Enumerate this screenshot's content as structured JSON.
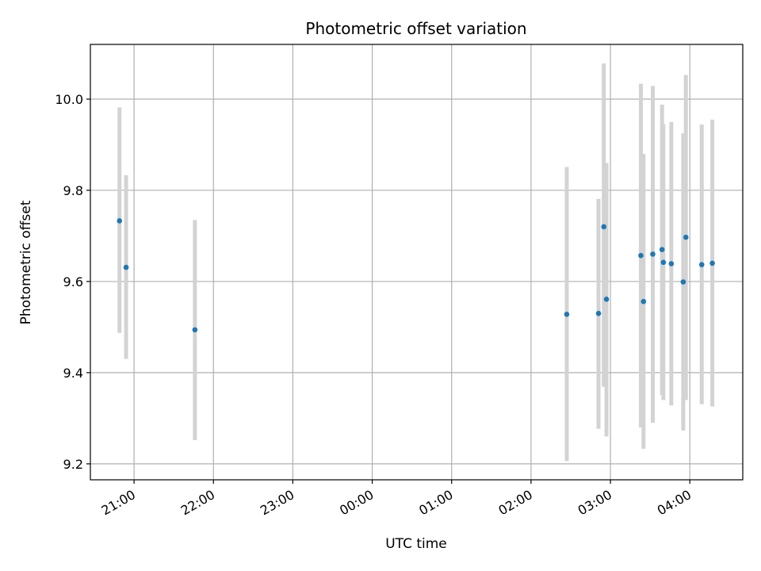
{
  "chart_data": {
    "type": "scatter",
    "title": "Photometric offset variation",
    "xlabel": "UTC time",
    "ylabel": "Photometric offset",
    "grid": true,
    "x_range": [
      "20:27",
      "04:40"
    ],
    "ylim": [
      9.165,
      10.12
    ],
    "x_ticks": [
      {
        "time": "21:00",
        "label": "21:00"
      },
      {
        "time": "22:00",
        "label": "22:00"
      },
      {
        "time": "23:00",
        "label": "23:00"
      },
      {
        "time": "24:00",
        "label": "00:00"
      },
      {
        "time": "25:00",
        "label": "01:00"
      },
      {
        "time": "26:00",
        "label": "02:00"
      },
      {
        "time": "27:00",
        "label": "03:00"
      },
      {
        "time": "28:00",
        "label": "04:00"
      }
    ],
    "y_ticks": [
      {
        "value": 9.2,
        "label": "9.2"
      },
      {
        "value": 9.4,
        "label": "9.4"
      },
      {
        "value": 9.6,
        "label": "9.6"
      },
      {
        "value": 9.8,
        "label": "9.8"
      },
      {
        "value": 10.0,
        "label": "10.0"
      }
    ],
    "colors": {
      "marker": "#1f77b4",
      "errorbar": "#d3d3d3",
      "grid": "#b0b0b0"
    },
    "points": [
      {
        "time": "20:49",
        "value": 9.733,
        "err_low": 9.487,
        "err_high": 9.982
      },
      {
        "time": "20:54",
        "value": 9.631,
        "err_low": 9.43,
        "err_high": 9.833
      },
      {
        "time": "21:46",
        "value": 9.494,
        "err_low": 9.252,
        "err_high": 9.735
      },
      {
        "time": "02:27",
        "value": 9.528,
        "err_low": 9.206,
        "err_high": 9.851
      },
      {
        "time": "02:51",
        "value": 9.53,
        "err_low": 9.277,
        "err_high": 9.781
      },
      {
        "time": "02:55",
        "value": 9.72,
        "err_low": 9.369,
        "err_high": 10.078
      },
      {
        "time": "02:57",
        "value": 9.561,
        "err_low": 9.26,
        "err_high": 9.86
      },
      {
        "time": "03:23",
        "value": 9.657,
        "err_low": 9.28,
        "err_high": 10.034
      },
      {
        "time": "03:25",
        "value": 9.556,
        "err_low": 9.233,
        "err_high": 9.88
      },
      {
        "time": "03:32",
        "value": 9.66,
        "err_low": 9.29,
        "err_high": 10.029
      },
      {
        "time": "03:39",
        "value": 9.67,
        "err_low": 9.351,
        "err_high": 9.988
      },
      {
        "time": "03:40",
        "value": 9.642,
        "err_low": 9.34,
        "err_high": 9.945
      },
      {
        "time": "03:46",
        "value": 9.639,
        "err_low": 9.328,
        "err_high": 9.95
      },
      {
        "time": "03:55",
        "value": 9.599,
        "err_low": 9.273,
        "err_high": 9.925
      },
      {
        "time": "03:57",
        "value": 9.697,
        "err_low": 9.34,
        "err_high": 10.053
      },
      {
        "time": "04:09",
        "value": 9.637,
        "err_low": 9.331,
        "err_high": 9.944
      },
      {
        "time": "04:17",
        "value": 9.64,
        "err_low": 9.326,
        "err_high": 9.955
      }
    ]
  }
}
